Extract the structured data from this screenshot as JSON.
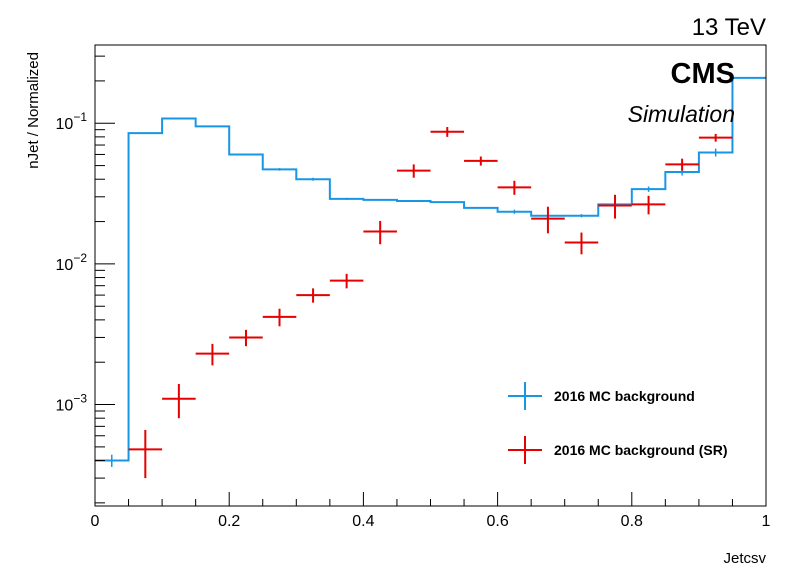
{
  "chart_data": {
    "type": "line",
    "energy_label": "13 TeV",
    "experiment_label": "CMS",
    "status_label": "Simulation",
    "xlabel": "Jetcsv",
    "ylabel": "nJet / Normalized",
    "xlim": [
      0,
      1
    ],
    "ylim": [
      0.00019,
      0.36
    ],
    "log_y": true,
    "grid": false,
    "legend_position": "bottom-right",
    "x_tick_labels": [
      "0",
      "0.2",
      "0.4",
      "0.6",
      "0.8",
      "1"
    ],
    "y_tick_labels": [
      {
        "mantissa": "10",
        "exp": "−1",
        "value": 0.1
      },
      {
        "mantissa": "10",
        "exp": "−2",
        "value": 0.01
      },
      {
        "mantissa": "10",
        "exp": "−3",
        "value": 0.001
      }
    ],
    "bin_width": 0.05,
    "series": [
      {
        "name": "2016 MC background",
        "color": "#1896e6",
        "style": "step",
        "x": [
          0.025,
          0.075,
          0.125,
          0.175,
          0.225,
          0.275,
          0.325,
          0.375,
          0.425,
          0.475,
          0.525,
          0.575,
          0.625,
          0.675,
          0.725,
          0.775,
          0.825,
          0.875,
          0.925,
          0.975
        ],
        "y": [
          0.0004,
          0.085,
          0.108,
          0.095,
          0.06,
          0.047,
          0.04,
          0.029,
          0.0285,
          0.028,
          0.0275,
          0.025,
          0.0235,
          0.022,
          0.022,
          0.0265,
          0.034,
          0.045,
          0.062,
          0.21
        ],
        "yerr": [
          4e-05,
          0,
          0,
          0,
          0,
          0.001,
          0.001,
          0.0005,
          0,
          0,
          0,
          0,
          0.0008,
          0,
          0.0006,
          0.0012,
          0.0015,
          0.0025,
          0.004,
          0
        ]
      },
      {
        "name": "2016 MC background (SR)",
        "color": "#e60000",
        "style": "points",
        "x": [
          0.075,
          0.125,
          0.175,
          0.225,
          0.275,
          0.325,
          0.375,
          0.425,
          0.475,
          0.525,
          0.575,
          0.625,
          0.675,
          0.725,
          0.775,
          0.825,
          0.875,
          0.925
        ],
        "y": [
          0.00048,
          0.0011,
          0.0023,
          0.003,
          0.0042,
          0.006,
          0.0076,
          0.017,
          0.046,
          0.087,
          0.054,
          0.035,
          0.021,
          0.0142,
          0.026,
          0.0265,
          0.051,
          0.079
        ],
        "yerr_low": [
          0.00018,
          0.0003,
          0.0004,
          0.0004,
          0.0006,
          0.0007,
          0.0009,
          0.0032,
          0.005,
          0.007,
          0.004,
          0.004,
          0.0045,
          0.0025,
          0.005,
          0.004,
          0.005,
          0.005
        ],
        "yerr_high": [
          0.00018,
          0.0003,
          0.0004,
          0.0004,
          0.0006,
          0.0007,
          0.0009,
          0.0032,
          0.005,
          0.007,
          0.004,
          0.004,
          0.0045,
          0.0025,
          0.005,
          0.004,
          0.005,
          0.005
        ]
      }
    ]
  }
}
